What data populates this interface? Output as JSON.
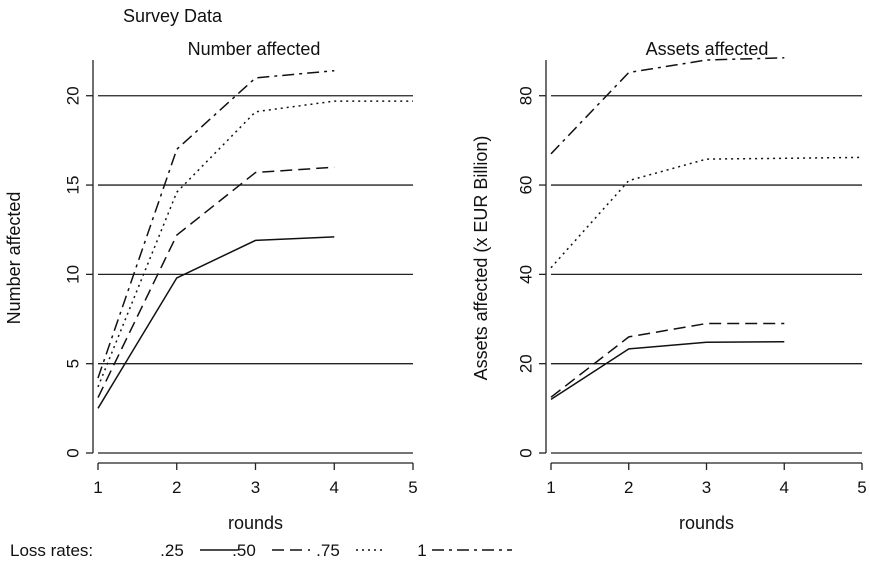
{
  "suptitle": "Survey Data",
  "legend": {
    "title": "Loss rates:",
    "items": [
      {
        "label": ".25",
        "dash": "solid"
      },
      {
        "label": ".50",
        "dash": "dash"
      },
      {
        "label": ".75",
        "dash": "dot"
      },
      {
        "label": "1",
        "dash": "dashdot"
      }
    ]
  },
  "chart_data": [
    {
      "type": "line",
      "title": "Number affected",
      "xlabel": "rounds",
      "ylabel": "Number affected",
      "xlim": [
        1,
        5
      ],
      "ylim": [
        0,
        22
      ],
      "xticks": [
        1,
        2,
        3,
        4,
        5
      ],
      "yticks": [
        0,
        5,
        10,
        15,
        20
      ],
      "grid": "horizontal",
      "x": [
        1,
        2,
        3,
        4
      ],
      "series": [
        {
          "name": ".25",
          "dash": "solid",
          "values": [
            2.5,
            9.8,
            11.9,
            12.1
          ]
        },
        {
          "name": ".50",
          "dash": "dash",
          "values": [
            3.1,
            12.2,
            15.7,
            16.0
          ]
        },
        {
          "name": ".75",
          "dash": "dot",
          "values": [
            3.7,
            14.6,
            19.1,
            19.7
          ]
        },
        {
          "name": "1",
          "dash": "dashdot",
          "values": [
            4.2,
            17.0,
            21.0,
            21.4
          ]
        }
      ],
      "extra_points": {
        ".75": {
          "x": 5,
          "y": 19.7
        }
      }
    },
    {
      "type": "line",
      "title": "Assets affected",
      "xlabel": "rounds",
      "ylabel": "Assets affected (x EUR Billion)",
      "xlim": [
        1,
        5
      ],
      "ylim": [
        0,
        88
      ],
      "xticks": [
        1,
        2,
        3,
        4,
        5
      ],
      "yticks": [
        0,
        20,
        40,
        60,
        80
      ],
      "grid": "horizontal",
      "x": [
        1,
        2,
        3,
        4
      ],
      "series": [
        {
          "name": ".25",
          "dash": "solid",
          "values": [
            12.0,
            23.3,
            24.8,
            24.9
          ]
        },
        {
          "name": ".50",
          "dash": "dash",
          "values": [
            12.5,
            26.0,
            29.0,
            29.0
          ]
        },
        {
          "name": ".75",
          "dash": "dot",
          "values": [
            41.5,
            61.0,
            65.8,
            66.0
          ]
        },
        {
          "name": "1",
          "dash": "dashdot",
          "values": [
            67.0,
            85.2,
            88.0,
            88.5
          ]
        }
      ],
      "extra_points": {
        ".75": {
          "x": 5,
          "y": 66.2
        }
      }
    }
  ]
}
